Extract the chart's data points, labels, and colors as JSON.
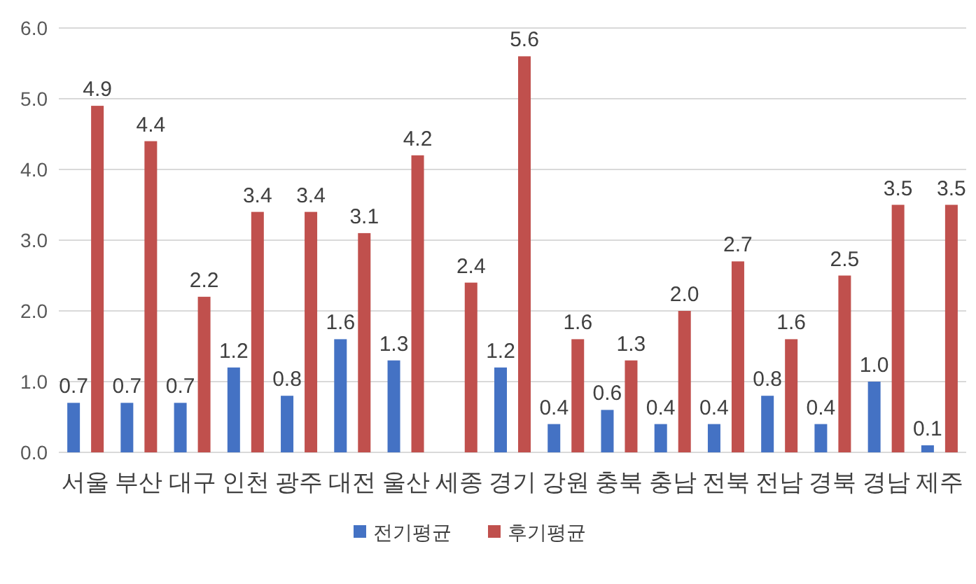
{
  "chart_data": {
    "type": "bar",
    "categories": [
      "서울",
      "부산",
      "대구",
      "인천",
      "광주",
      "대전",
      "울산",
      "세종",
      "경기",
      "강원",
      "충북",
      "충남",
      "전북",
      "전남",
      "경북",
      "경남",
      "제주"
    ],
    "series": [
      {
        "name": "전기평균",
        "color": "#4472c4",
        "values": [
          0.7,
          0.7,
          0.7,
          1.2,
          0.8,
          1.6,
          1.3,
          null,
          1.2,
          0.4,
          0.6,
          0.4,
          0.4,
          0.8,
          0.4,
          1.0,
          0.1
        ],
        "value_labels": [
          "0.7",
          "0.7",
          "0.7",
          "1.2",
          "0.8",
          "1.6",
          "1.3",
          null,
          "1.2",
          "0.4",
          "0.6",
          "0.4",
          "0.4",
          "0.8",
          "0.4",
          "1.0",
          "0.1"
        ]
      },
      {
        "name": "후기평균",
        "color": "#c0504d",
        "values": [
          4.9,
          4.4,
          2.2,
          3.4,
          3.4,
          3.1,
          4.2,
          2.4,
          5.6,
          1.6,
          1.3,
          2.0,
          2.7,
          1.6,
          2.5,
          3.5,
          3.5
        ],
        "value_labels": [
          "4.9",
          "4.4",
          "2.2",
          "3.4",
          "3.4",
          "3.1",
          "4.2",
          "2.4",
          "5.6",
          "1.6",
          "1.3",
          "2.0",
          "2.7",
          "1.6",
          "2.5",
          "3.5",
          "3.5"
        ]
      }
    ],
    "ylim": [
      0,
      6
    ],
    "yticks": [
      {
        "value": 0,
        "label": "0.0"
      },
      {
        "value": 1,
        "label": "1.0"
      },
      {
        "value": 2,
        "label": "2.0"
      },
      {
        "value": 3,
        "label": "3.0"
      },
      {
        "value": 4,
        "label": "4.0"
      },
      {
        "value": 5,
        "label": "5.0"
      },
      {
        "value": 6,
        "label": "6.0"
      }
    ],
    "grid": "y",
    "legend": "bottom"
  }
}
